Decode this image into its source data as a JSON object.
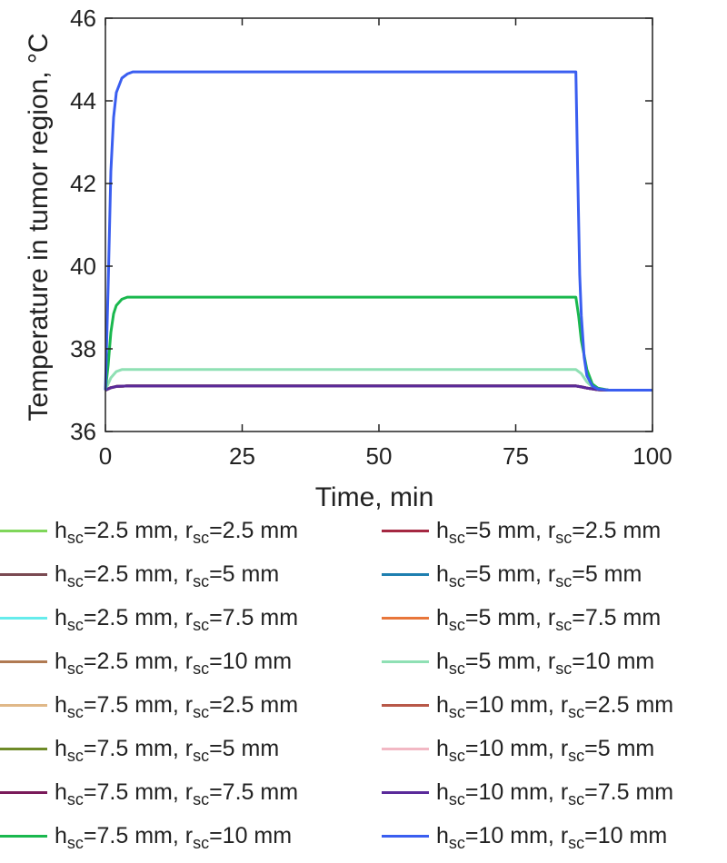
{
  "chart_data": {
    "type": "line",
    "xlabel": "Time, min",
    "ylabel": "Temperature in tumor region, °C",
    "xlim": [
      0,
      100
    ],
    "ylim": [
      36,
      46
    ],
    "xticks": [
      0,
      25,
      50,
      75,
      100
    ],
    "yticks": [
      36,
      38,
      40,
      42,
      44,
      46
    ],
    "grid": false,
    "legend_placement": "below, two columns",
    "series": [
      {
        "name": "h_sc=2.5 mm, r_sc=2.5 mm",
        "color": "#7fd65a",
        "x": [
          0,
          1,
          2,
          4,
          86,
          87,
          88,
          90,
          92,
          100
        ],
        "y": [
          37,
          37.06,
          37.09,
          37.1,
          37.1,
          37.08,
          37.05,
          37.01,
          37,
          37
        ]
      },
      {
        "name": "h_sc=5 mm, r_sc=2.5 mm",
        "color": "#a52842",
        "x": [
          0,
          1,
          2,
          4,
          86,
          87,
          88,
          90,
          92,
          100
        ],
        "y": [
          37,
          37.06,
          37.09,
          37.1,
          37.1,
          37.08,
          37.05,
          37.01,
          37,
          37
        ]
      },
      {
        "name": "h_sc=2.5 mm, r_sc=5 mm",
        "color": "#7a4a52",
        "x": [
          0,
          1,
          2,
          4,
          86,
          87,
          88,
          90,
          92,
          100
        ],
        "y": [
          37,
          37.06,
          37.09,
          37.1,
          37.1,
          37.08,
          37.05,
          37.01,
          37,
          37
        ]
      },
      {
        "name": "h_sc=5 mm, r_sc=5 mm",
        "color": "#1e7fb0",
        "x": [
          0,
          1,
          2,
          4,
          86,
          87,
          88,
          90,
          92,
          100
        ],
        "y": [
          37,
          37.06,
          37.09,
          37.1,
          37.1,
          37.08,
          37.05,
          37.01,
          37,
          37
        ]
      },
      {
        "name": "h_sc=2.5 mm, r_sc=7.5 mm",
        "color": "#66ecec",
        "x": [
          0,
          1,
          2,
          4,
          86,
          87,
          88,
          90,
          92,
          100
        ],
        "y": [
          37,
          37.06,
          37.09,
          37.1,
          37.1,
          37.08,
          37.05,
          37.01,
          37,
          37
        ]
      },
      {
        "name": "h_sc=5 mm, r_sc=7.5 mm",
        "color": "#e8763a",
        "x": [
          0,
          1,
          2,
          4,
          86,
          87,
          88,
          90,
          92,
          100
        ],
        "y": [
          37,
          37.06,
          37.09,
          37.1,
          37.1,
          37.08,
          37.05,
          37.01,
          37,
          37
        ]
      },
      {
        "name": "h_sc=2.5 mm, r_sc=10 mm",
        "color": "#b07a52",
        "x": [
          0,
          1,
          2,
          4,
          86,
          87,
          88,
          90,
          92,
          100
        ],
        "y": [
          37,
          37.06,
          37.09,
          37.1,
          37.1,
          37.08,
          37.05,
          37.01,
          37,
          37
        ]
      },
      {
        "name": "h_sc=5 mm, r_sc=10 mm",
        "color": "#8fe0b4",
        "x": [
          0,
          1,
          2,
          3,
          4,
          86,
          87,
          88,
          89,
          90,
          92,
          100
        ],
        "y": [
          37,
          37.3,
          37.45,
          37.5,
          37.5,
          37.5,
          37.4,
          37.2,
          37.08,
          37.02,
          37,
          37
        ]
      },
      {
        "name": "h_sc=7.5 mm, r_sc=2.5 mm",
        "color": "#e0b888",
        "x": [
          0,
          1,
          2,
          4,
          86,
          87,
          88,
          90,
          92,
          100
        ],
        "y": [
          37,
          37.06,
          37.09,
          37.1,
          37.1,
          37.08,
          37.05,
          37.01,
          37,
          37
        ]
      },
      {
        "name": "h_sc=10 mm, r_sc=2.5 mm",
        "color": "#b85848",
        "x": [
          0,
          1,
          2,
          4,
          86,
          87,
          88,
          90,
          92,
          100
        ],
        "y": [
          37,
          37.06,
          37.09,
          37.1,
          37.1,
          37.08,
          37.05,
          37.01,
          37,
          37
        ]
      },
      {
        "name": "h_sc=7.5 mm, r_sc=5 mm",
        "color": "#6e8a28",
        "x": [
          0,
          1,
          2,
          4,
          86,
          87,
          88,
          90,
          92,
          100
        ],
        "y": [
          37,
          37.06,
          37.09,
          37.1,
          37.1,
          37.08,
          37.05,
          37.01,
          37,
          37
        ]
      },
      {
        "name": "h_sc=10 mm, r_sc=5 mm",
        "color": "#f2b8c4",
        "x": [
          0,
          1,
          2,
          4,
          86,
          87,
          88,
          90,
          92,
          100
        ],
        "y": [
          37,
          37.06,
          37.09,
          37.1,
          37.1,
          37.08,
          37.05,
          37.01,
          37,
          37
        ]
      },
      {
        "name": "h_sc=7.5 mm, r_sc=7.5 mm",
        "color": "#7a1a5a",
        "x": [
          0,
          1,
          2,
          4,
          86,
          87,
          88,
          90,
          92,
          100
        ],
        "y": [
          37,
          37.06,
          37.09,
          37.1,
          37.1,
          37.08,
          37.05,
          37.01,
          37,
          37
        ]
      },
      {
        "name": "h_sc=10 mm, r_sc=7.5 mm",
        "color": "#5a2a9a",
        "x": [
          0,
          1,
          2,
          4,
          86,
          87,
          88,
          90,
          92,
          100
        ],
        "y": [
          37,
          37.06,
          37.09,
          37.1,
          37.1,
          37.08,
          37.05,
          37.01,
          37,
          37
        ]
      },
      {
        "name": "h_sc=7.5 mm, r_sc=10 mm",
        "color": "#1ab84e",
        "x": [
          0,
          0.5,
          1,
          1.5,
          2,
          3,
          4,
          5,
          86,
          86.5,
          87,
          88,
          89,
          90,
          92,
          100
        ],
        "y": [
          37,
          37.6,
          38.4,
          38.85,
          39.05,
          39.2,
          39.25,
          39.25,
          39.25,
          38.8,
          38.2,
          37.5,
          37.15,
          37.05,
          37,
          37
        ]
      },
      {
        "name": "h_sc=10 mm, r_sc=10 mm",
        "color": "#3a5ef0",
        "x": [
          0,
          0.5,
          1,
          1.5,
          2,
          3,
          4,
          5,
          6,
          86,
          86.3,
          86.7,
          87,
          87.5,
          88,
          89,
          90,
          92,
          100
        ],
        "y": [
          37,
          39.5,
          42.3,
          43.6,
          44.2,
          44.55,
          44.65,
          44.7,
          44.7,
          44.7,
          42.5,
          39.8,
          38.8,
          37.8,
          37.35,
          37.1,
          37.03,
          37,
          37
        ]
      }
    ]
  },
  "legend": {
    "items": [
      {
        "h": "h",
        "hsub": "sc",
        "hval": "=2.5 mm, ",
        "r": "r",
        "rsub": "sc",
        "rval": "=2.5 mm"
      },
      {
        "h": "h",
        "hsub": "sc",
        "hval": "=5 mm, ",
        "r": "r",
        "rsub": "sc",
        "rval": "=2.5 mm"
      },
      {
        "h": "h",
        "hsub": "sc",
        "hval": "=2.5 mm, ",
        "r": "r",
        "rsub": "sc",
        "rval": "=5 mm"
      },
      {
        "h": "h",
        "hsub": "sc",
        "hval": "=5 mm, ",
        "r": "r",
        "rsub": "sc",
        "rval": "=5 mm"
      },
      {
        "h": "h",
        "hsub": "sc",
        "hval": "=2.5 mm, ",
        "r": "r",
        "rsub": "sc",
        "rval": "=7.5 mm"
      },
      {
        "h": "h",
        "hsub": "sc",
        "hval": "=5 mm, ",
        "r": "r",
        "rsub": "sc",
        "rval": "=7.5 mm"
      },
      {
        "h": "h",
        "hsub": "sc",
        "hval": "=2.5 mm, ",
        "r": "r",
        "rsub": "sc",
        "rval": "=10 mm"
      },
      {
        "h": "h",
        "hsub": "sc",
        "hval": "=5 mm, ",
        "r": "r",
        "rsub": "sc",
        "rval": "=10 mm"
      },
      {
        "h": "h",
        "hsub": "sc",
        "hval": "=7.5 mm, ",
        "r": "r",
        "rsub": "sc",
        "rval": "=2.5 mm"
      },
      {
        "h": "h",
        "hsub": "sc",
        "hval": "=10 mm, ",
        "r": "r",
        "rsub": "sc",
        "rval": "=2.5 mm"
      },
      {
        "h": "h",
        "hsub": "sc",
        "hval": "=7.5 mm, ",
        "r": "r",
        "rsub": "sc",
        "rval": "=5 mm"
      },
      {
        "h": "h",
        "hsub": "sc",
        "hval": "=10 mm, ",
        "r": "r",
        "rsub": "sc",
        "rval": "=5 mm"
      },
      {
        "h": "h",
        "hsub": "sc",
        "hval": "=7.5 mm, ",
        "r": "r",
        "rsub": "sc",
        "rval": "=7.5 mm"
      },
      {
        "h": "h",
        "hsub": "sc",
        "hval": "=10 mm, ",
        "r": "r",
        "rsub": "sc",
        "rval": "=7.5 mm"
      },
      {
        "h": "h",
        "hsub": "sc",
        "hval": "=7.5 mm, ",
        "r": "r",
        "rsub": "sc",
        "rval": "=10 mm"
      },
      {
        "h": "h",
        "hsub": "sc",
        "hval": "=10 mm, ",
        "r": "r",
        "rsub": "sc",
        "rval": "=10 mm"
      }
    ]
  }
}
